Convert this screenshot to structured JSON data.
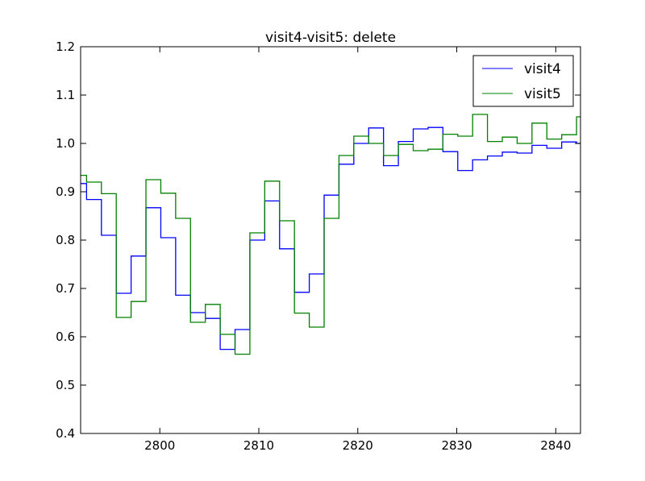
{
  "chart_data": {
    "type": "line",
    "drawstyle": "steps",
    "title": "visit4-visit5: delete",
    "xlabel": "",
    "ylabel": "",
    "xlim": [
      2792,
      2842.5
    ],
    "ylim": [
      0.4,
      1.2
    ],
    "xticks": [
      2800,
      2810,
      2820,
      2830,
      2840
    ],
    "yticks": [
      0.4,
      0.5,
      0.6,
      0.7,
      0.8,
      0.9,
      1.0,
      1.1,
      1.2
    ],
    "xtick_labels": [
      "2800",
      "2810",
      "2820",
      "2830",
      "2840"
    ],
    "ytick_labels": [
      "0.4",
      "0.5",
      "0.6",
      "0.7",
      "0.8",
      "0.9",
      "1.0",
      "1.1",
      "1.2"
    ],
    "grid": false,
    "legend_position": "top-right",
    "x_edges": [
      2792,
      2792.6,
      2794.1,
      2795.6,
      2797.1,
      2798.6,
      2800.1,
      2801.6,
      2803.1,
      2804.6,
      2806.1,
      2807.6,
      2809.1,
      2810.6,
      2812.1,
      2813.6,
      2815.1,
      2816.6,
      2818.1,
      2819.6,
      2821.1,
      2822.6,
      2824.1,
      2825.6,
      2827.1,
      2828.6,
      2830.1,
      2831.6,
      2833.1,
      2834.6,
      2836.1,
      2837.6,
      2839.1,
      2840.6,
      2842.1,
      2842.5
    ],
    "series": [
      {
        "name": "visit4",
        "color": "#0000ff",
        "values": [
          0.917,
          0.884,
          0.81,
          0.69,
          0.767,
          0.867,
          0.805,
          0.686,
          0.65,
          0.638,
          0.574,
          0.615,
          0.8,
          0.881,
          0.782,
          0.692,
          0.73,
          0.893,
          0.957,
          1.0,
          1.032,
          0.954,
          1.004,
          1.03,
          1.033,
          0.983,
          0.944,
          0.966,
          0.974,
          0.982,
          0.98,
          0.996,
          0.99,
          1.003,
          1.0
        ]
      },
      {
        "name": "visit5",
        "color": "#008000",
        "values": [
          0.934,
          0.92,
          0.896,
          0.64,
          0.673,
          0.925,
          0.897,
          0.845,
          0.63,
          0.667,
          0.605,
          0.564,
          0.815,
          0.922,
          0.84,
          0.649,
          0.62,
          0.845,
          0.975,
          1.015,
          1.0,
          0.975,
          0.998,
          0.985,
          0.988,
          1.019,
          1.015,
          1.06,
          1.004,
          1.013,
          1.0,
          1.042,
          1.009,
          1.018,
          1.055
        ]
      }
    ]
  }
}
